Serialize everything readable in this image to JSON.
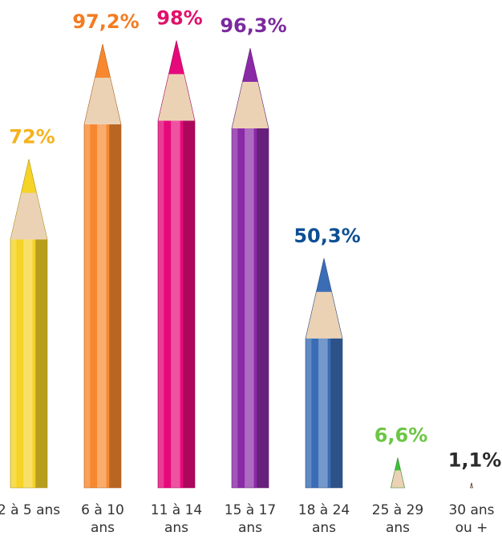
{
  "chart_data": {
    "type": "pictorial-bar",
    "categories": [
      "2 à 5 ans",
      "6 à 10 ans",
      "11 à 14 ans",
      "15 à 17 ans",
      "18 à 24 ans",
      "25 à 29 ans",
      "30 ans ou +"
    ],
    "values": [
      72,
      97.2,
      98,
      96.3,
      50.3,
      6.6,
      1.1
    ],
    "value_labels": [
      "72%",
      "97,2%",
      "98%",
      "96,3%",
      "50,3%",
      "6,6%",
      "1,1%"
    ],
    "colors": [
      "#f5d327",
      "#f7882f",
      "#e6097a",
      "#8a2aa6",
      "#3a6db5",
      "#3fbf3a",
      "#5a2210"
    ],
    "label_colors": [
      "#f6b21c",
      "#f47b20",
      "#e0106b",
      "#7b2a9e",
      "#0d4f94",
      "#6cc644",
      "#2b2b2b"
    ],
    "ylim": [
      0,
      100
    ]
  }
}
